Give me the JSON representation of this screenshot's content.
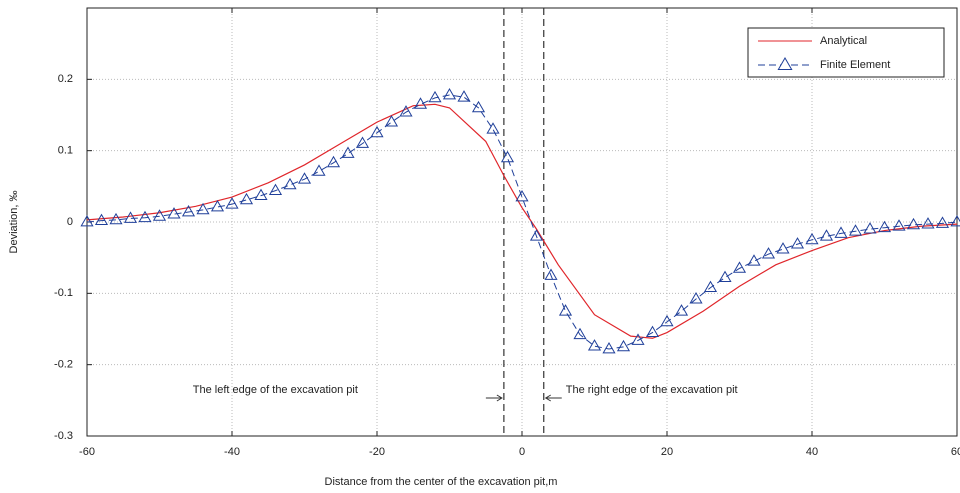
{
  "chart_data": {
    "type": "line",
    "xlabel": "Distance from the center of the excavation pit,m",
    "ylabel": "Deviation, ‰",
    "xlim": [
      -60,
      60
    ],
    "ylim": [
      -0.3,
      0.3
    ],
    "xticks": [
      -60,
      -40,
      -20,
      0,
      20,
      40,
      60
    ],
    "yticks": [
      -0.3,
      -0.2,
      -0.1,
      0,
      0.1,
      0.2
    ],
    "grid": true,
    "legend": "upper right",
    "series": [
      {
        "name": "Analytical",
        "color": "#e0262b",
        "marker": "none",
        "x": [
          -60,
          -55,
          -50,
          -45,
          -40,
          -35,
          -30,
          -25,
          -20,
          -15,
          -12,
          -10,
          -5,
          -2.5,
          0,
          2,
          5,
          10,
          15,
          18,
          20,
          25,
          30,
          35,
          40,
          45,
          50,
          55,
          60
        ],
        "values": [
          0.003,
          0.007,
          0.013,
          0.022,
          0.035,
          0.055,
          0.08,
          0.11,
          0.14,
          0.163,
          0.165,
          0.16,
          0.113,
          0.065,
          0.02,
          -0.01,
          -0.06,
          -0.13,
          -0.16,
          -0.163,
          -0.155,
          -0.125,
          -0.09,
          -0.06,
          -0.04,
          -0.022,
          -0.012,
          -0.006,
          -0.003
        ]
      },
      {
        "name": "Finite Element",
        "color": "#1f3f99",
        "marker": "triangle",
        "x": [
          -60,
          -58,
          -56,
          -54,
          -52,
          -50,
          -48,
          -46,
          -44,
          -42,
          -40,
          -38,
          -36,
          -34,
          -32,
          -30,
          -28,
          -26,
          -24,
          -22,
          -20,
          -18,
          -16,
          -14,
          -12,
          -10,
          -8,
          -6,
          -4,
          -2,
          0,
          2,
          4,
          6,
          8,
          10,
          12,
          14,
          16,
          18,
          20,
          22,
          24,
          26,
          28,
          30,
          32,
          34,
          36,
          38,
          40,
          42,
          44,
          46,
          48,
          50,
          52,
          54,
          56,
          58,
          60
        ],
        "values": [
          0.0,
          0.002,
          0.003,
          0.005,
          0.006,
          0.008,
          0.011,
          0.014,
          0.017,
          0.021,
          0.025,
          0.031,
          0.037,
          0.044,
          0.052,
          0.06,
          0.071,
          0.083,
          0.096,
          0.11,
          0.125,
          0.14,
          0.154,
          0.165,
          0.174,
          0.178,
          0.175,
          0.16,
          0.13,
          0.09,
          0.035,
          -0.02,
          -0.075,
          -0.125,
          -0.158,
          -0.174,
          -0.178,
          -0.175,
          -0.166,
          -0.155,
          -0.14,
          -0.125,
          -0.108,
          -0.092,
          -0.078,
          -0.065,
          -0.055,
          -0.045,
          -0.038,
          -0.031,
          -0.025,
          -0.02,
          -0.016,
          -0.013,
          -0.01,
          -0.008,
          -0.006,
          -0.004,
          -0.003,
          -0.002,
          0.0
        ]
      }
    ],
    "vlines": [
      {
        "x": -2.5,
        "label": "The left edge of the excavation pit",
        "side": "left"
      },
      {
        "x": 3,
        "label": "The right edge of the excavation pit",
        "side": "right"
      }
    ]
  }
}
